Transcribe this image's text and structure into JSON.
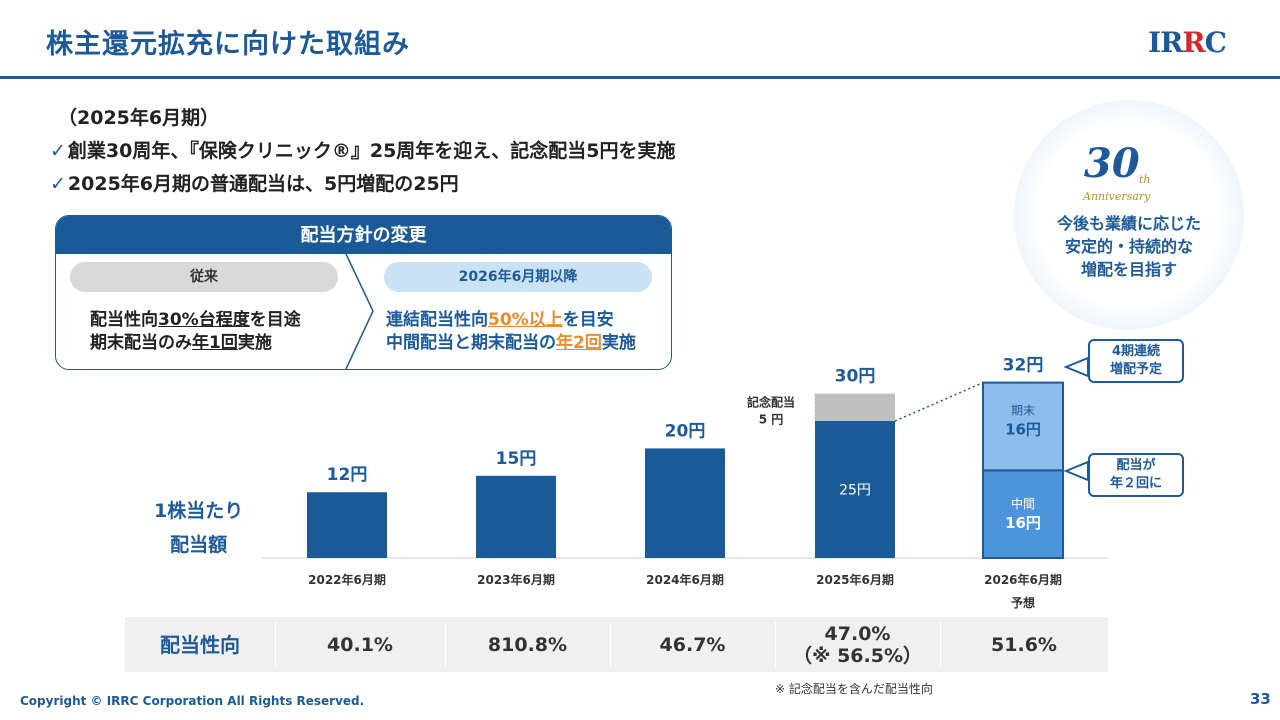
{
  "header": {
    "title": "株主還元拡充に向けた取組み",
    "logo_text_1": "IR",
    "logo_text_2": "R",
    "logo_text_3": "C"
  },
  "intro": {
    "period": "（2025年6月期）",
    "bullet1": "創業30周年、『保険クリニック®』25周年を迎え、記念配当5円を実施",
    "bullet2": "2025年6月期の普通配当は、5円増配の25円"
  },
  "policy": {
    "heading": "配当方針の変更",
    "old_label": "従来",
    "new_label": "2026年6月期以降",
    "old_line1_a": "配当性向",
    "old_line1_b": "30%台程度",
    "old_line1_c": "を目途",
    "old_line2_a": "期末配当のみ",
    "old_line2_b": "年1回",
    "old_line2_c": "実施",
    "new_line1_a": "連結配当性向",
    "new_line1_b": "50%以上",
    "new_line1_c": "を目安",
    "new_line2_a": "中間配当と期末配当の",
    "new_line2_b": "年2回",
    "new_line2_c": "実施"
  },
  "anniversary": {
    "number": "30",
    "suffix": "th",
    "word": "Anniversary",
    "message_line1": "今後も業績に応じた",
    "message_line2": "安定的・持続的な",
    "message_line3": "増配を目指す"
  },
  "chart_data": {
    "type": "bar",
    "ylabel_line1": "1株当たり",
    "ylabel_line2": "配当額",
    "categories": [
      "2022年6月期",
      "2023年6月期",
      "2024年6月期",
      "2025年6月期",
      "2026年6月期"
    ],
    "category_sublabels": [
      "",
      "",
      "",
      "",
      "予想"
    ],
    "totals": [
      12,
      15,
      20,
      30,
      32
    ],
    "total_labels": [
      "12円",
      "15円",
      "20円",
      "30円",
      "32円"
    ],
    "series": [
      {
        "name": "普通配当",
        "values": [
          12,
          15,
          20,
          25,
          0
        ],
        "color": "#1b5a99"
      },
      {
        "name": "記念配当",
        "values": [
          0,
          0,
          0,
          5,
          0
        ],
        "color": "#c0c0c0"
      },
      {
        "name": "中間",
        "values": [
          0,
          0,
          0,
          0,
          16
        ],
        "color": "#4c95dd"
      },
      {
        "name": "期末",
        "values": [
          0,
          0,
          0,
          0,
          16
        ],
        "color": "#8dbdeb"
      }
    ],
    "inner_labels": {
      "regular_2025": "25円",
      "interim_name": "中間",
      "interim_value": "16円",
      "final_name": "期末",
      "final_value": "16円"
    },
    "commemorative_label_line1": "記念配当",
    "commemorative_label_line2": "5 円",
    "ylim": [
      0,
      35
    ]
  },
  "callouts": {
    "consecutive_line1": "4期連続",
    "consecutive_line2": "増配予定",
    "twice_line1": "配当が",
    "twice_line2": "年２回に"
  },
  "payout_table": {
    "header": "配当性向",
    "values": [
      "40.1%",
      "810.8%",
      "46.7%",
      "47.0%",
      "51.6%"
    ],
    "note_2025": "（※ 56.5%）"
  },
  "footer": {
    "note": "※ 記念配当を含んだ配当性向",
    "copyright": "Copyright © IRRC Corporation All Rights Reserved.",
    "page": "33"
  },
  "colors": {
    "brand_blue": "#1e5a9a",
    "accent_orange": "#ed8a2d",
    "logo_red": "#d9262c"
  }
}
